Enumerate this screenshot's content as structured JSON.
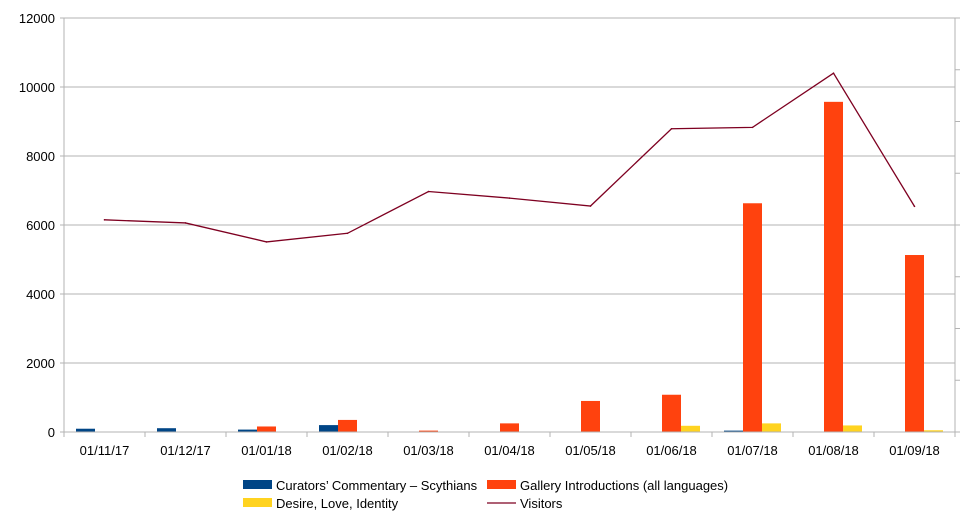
{
  "colors": {
    "curators": "#004586",
    "gallery": "#ff420e",
    "desire": "#ffd320",
    "visitors": "#7e0021",
    "grid": "#b3b3b3",
    "axis": "#b3b3b3"
  },
  "chart_data": {
    "type": "bar",
    "title": "",
    "xlabel": "",
    "ylabel": "",
    "ylim": [
      0,
      12000
    ],
    "yticks": [
      0,
      2000,
      4000,
      6000,
      8000,
      10000,
      12000
    ],
    "ytick_labels": [
      "0",
      "2000",
      "4000",
      "6000",
      "8000",
      "10000",
      "12000"
    ],
    "grid": true,
    "legend_position": "bottom",
    "secondary_axis": "right, unlabeled",
    "categories": [
      "01/11/17",
      "01/12/17",
      "01/01/18",
      "01/02/18",
      "01/03/18",
      "01/04/18",
      "01/05/18",
      "01/06/18",
      "01/07/18",
      "01/08/18",
      "01/09/18"
    ],
    "series": [
      {
        "name": "Curators’ Commentary – Scythians",
        "kind": "bar",
        "color_key": "curators",
        "values": [
          95,
          110,
          70,
          200,
          0,
          0,
          0,
          0,
          40,
          0,
          0
        ]
      },
      {
        "name": "Gallery Introductions (all languages)",
        "kind": "bar",
        "color_key": "gallery",
        "values": [
          0,
          0,
          160,
          350,
          40,
          250,
          900,
          1080,
          6630,
          9570,
          5130
        ]
      },
      {
        "name": "Desire, Love, Identity",
        "kind": "bar",
        "color_key": "desire",
        "values": [
          0,
          0,
          0,
          0,
          0,
          0,
          0,
          180,
          250,
          190,
          50
        ]
      },
      {
        "name": "Visitors",
        "kind": "line",
        "color_key": "visitors",
        "values": [
          6150,
          6060,
          5510,
          5760,
          6970,
          6780,
          6550,
          8790,
          8830,
          10400,
          6540
        ]
      }
    ],
    "legend": [
      {
        "label": "Curators’ Commentary – Scythians",
        "color_key": "curators",
        "kind": "bar"
      },
      {
        "label": "Gallery Introductions (all languages)",
        "color_key": "gallery",
        "kind": "bar"
      },
      {
        "label": "Desire, Love, Identity",
        "color_key": "desire",
        "kind": "bar"
      },
      {
        "label": "Visitors",
        "color_key": "visitors",
        "kind": "line"
      }
    ]
  }
}
